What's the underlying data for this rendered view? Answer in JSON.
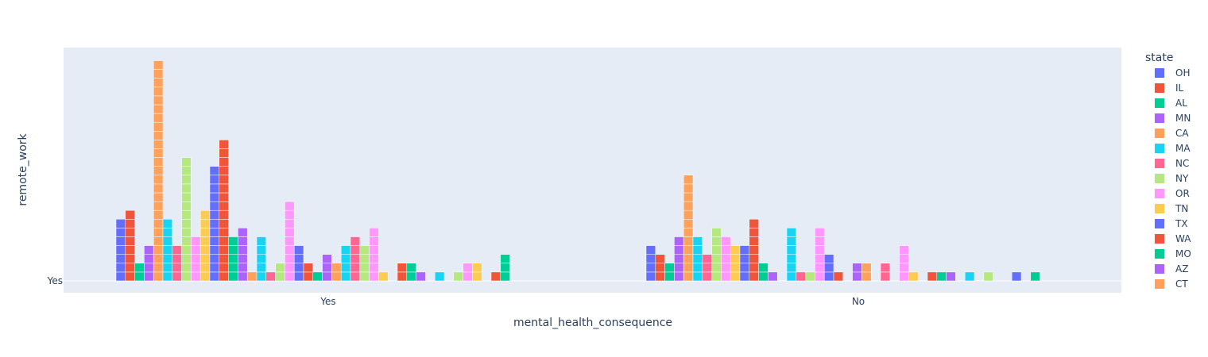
{
  "chart_data": {
    "type": "bar",
    "title": "",
    "xlabel": "mental_health_consequence",
    "ylabel": "remote_work",
    "y_ticks": [
      "Yes"
    ],
    "categories": [
      "Yes",
      "No"
    ],
    "stacked_unit_blocks": true,
    "legend_title": "state",
    "legend_placement": "right",
    "series": [
      {
        "name": "OH",
        "color": "#636efa",
        "values": [
          7,
          4
        ]
      },
      {
        "name": "IL",
        "color": "#EF553B",
        "values": [
          8,
          3
        ]
      },
      {
        "name": "AL",
        "color": "#00cc96",
        "values": [
          2,
          2
        ]
      },
      {
        "name": "MN",
        "color": "#ab63fa",
        "values": [
          4,
          5
        ]
      },
      {
        "name": "CA",
        "color": "#FFA15A",
        "values": [
          25,
          12
        ]
      },
      {
        "name": "MA",
        "color": "#19d3f3",
        "values": [
          7,
          5
        ]
      },
      {
        "name": "NC",
        "color": "#FF6692",
        "values": [
          4,
          3
        ]
      },
      {
        "name": "NY",
        "color": "#B6E880",
        "values": [
          14,
          6
        ]
      },
      {
        "name": "OR",
        "color": "#FF97FF",
        "values": [
          5,
          5
        ]
      },
      {
        "name": "TN",
        "color": "#FECB52",
        "values": [
          8,
          4
        ]
      },
      {
        "name": "TX",
        "color": "#636efa",
        "values": [
          13,
          4
        ]
      },
      {
        "name": "WA",
        "color": "#EF553B",
        "values": [
          16,
          7
        ]
      },
      {
        "name": "MO",
        "color": "#00cc96",
        "values": [
          5,
          2
        ]
      },
      {
        "name": "AZ",
        "color": "#ab63fa",
        "values": [
          6,
          1
        ]
      },
      {
        "name": "CT",
        "color": "#FFA15A",
        "values": [
          1,
          null
        ]
      },
      {
        "name": "MA",
        "color": "#19d3f3",
        "values": [
          5,
          6
        ]
      },
      {
        "name": "NC",
        "color": "#FF6692",
        "values": [
          1,
          1
        ]
      },
      {
        "name": "NY",
        "color": "#B6E880",
        "values": [
          2,
          1
        ]
      },
      {
        "name": "OR",
        "color": "#FF97FF",
        "values": [
          9,
          6
        ]
      },
      {
        "name": "OH",
        "color": "#636efa",
        "values": [
          4,
          3
        ]
      },
      {
        "name": "IL",
        "color": "#EF553B",
        "values": [
          2,
          1
        ]
      },
      {
        "name": "AL",
        "color": "#00cc96",
        "values": [
          1,
          null
        ]
      },
      {
        "name": "MN",
        "color": "#ab63fa",
        "values": [
          3,
          2
        ]
      },
      {
        "name": "CA",
        "color": "#FFA15A",
        "values": [
          2,
          2
        ]
      },
      {
        "name": "MA",
        "color": "#19d3f3",
        "values": [
          4,
          null
        ]
      },
      {
        "name": "NC",
        "color": "#FF6692",
        "values": [
          5,
          2
        ]
      },
      {
        "name": "NY",
        "color": "#B6E880",
        "values": [
          4,
          null
        ]
      },
      {
        "name": "OR",
        "color": "#FF97FF",
        "values": [
          6,
          4
        ]
      },
      {
        "name": "TN",
        "color": "#FECB52",
        "values": [
          1,
          1
        ]
      },
      {
        "name": "TX",
        "color": "#636efa",
        "values": [
          null,
          null
        ]
      },
      {
        "name": "WA",
        "color": "#EF553B",
        "values": [
          2,
          1
        ]
      },
      {
        "name": "MO",
        "color": "#00cc96",
        "values": [
          2,
          1
        ]
      },
      {
        "name": "AZ",
        "color": "#ab63fa",
        "values": [
          1,
          1
        ]
      },
      {
        "name": "CT",
        "color": "#FFA15A",
        "values": [
          null,
          null
        ]
      },
      {
        "name": "MA",
        "color": "#19d3f3",
        "values": [
          1,
          1
        ]
      },
      {
        "name": "NC",
        "color": "#FF6692",
        "values": [
          null,
          null
        ]
      },
      {
        "name": "NY",
        "color": "#B6E880",
        "values": [
          1,
          1
        ]
      },
      {
        "name": "OR",
        "color": "#FF97FF",
        "values": [
          2,
          null
        ]
      },
      {
        "name": "TN",
        "color": "#FECB52",
        "values": [
          2,
          null
        ]
      },
      {
        "name": "TX",
        "color": "#636efa",
        "values": [
          null,
          1
        ]
      },
      {
        "name": "WA",
        "color": "#EF553B",
        "values": [
          1,
          null
        ]
      },
      {
        "name": "MO",
        "color": "#00cc96",
        "values": [
          3,
          1
        ]
      }
    ]
  }
}
